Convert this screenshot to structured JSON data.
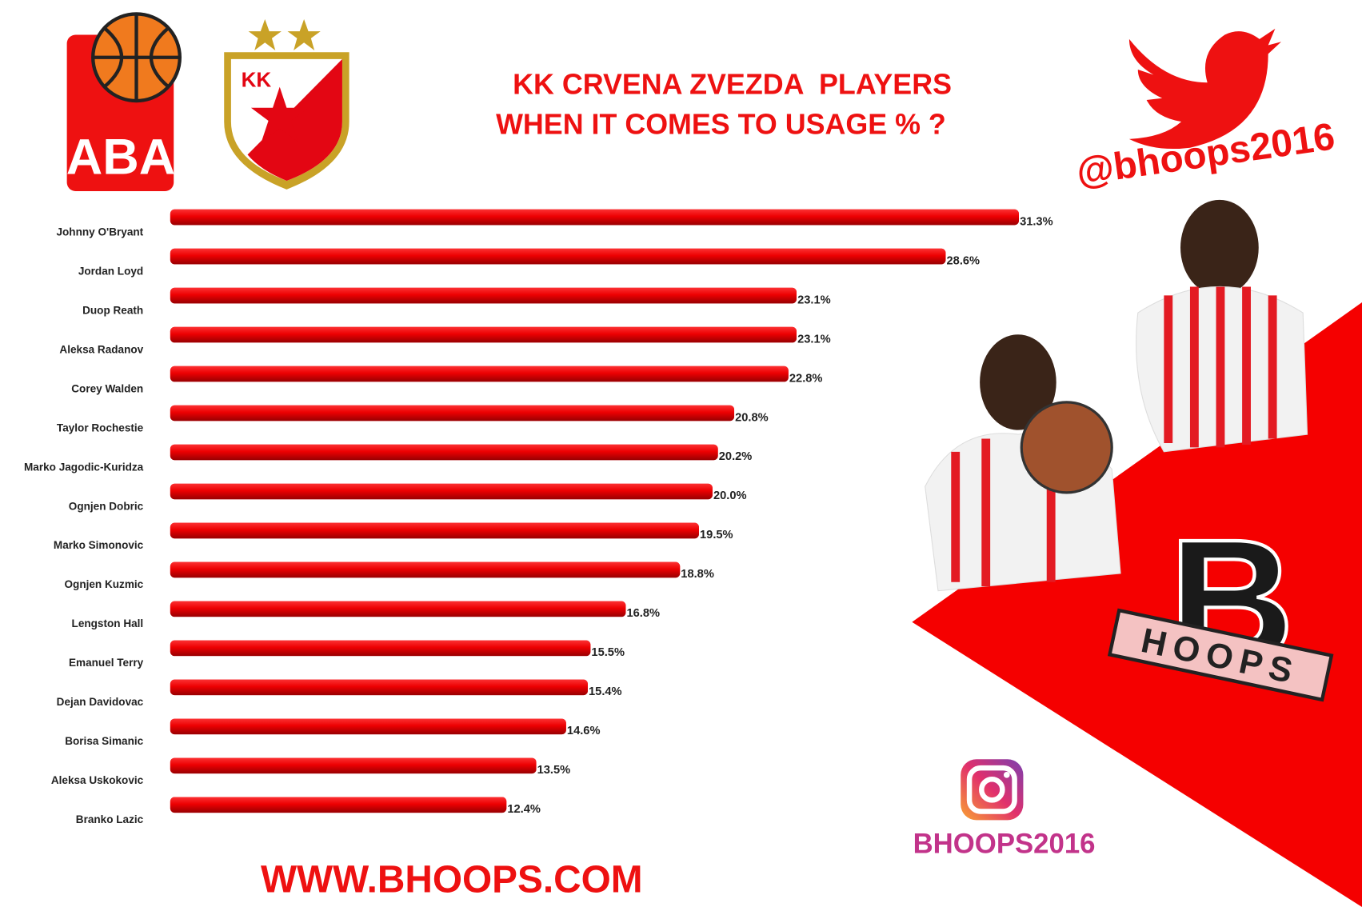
{
  "chart_data": {
    "type": "bar",
    "orientation": "horizontal",
    "title": "KK CRVENA ZVEZDA  PLAYERS",
    "subtitle": "WHEN IT COMES TO USAGE % ?",
    "color": "#e8000b",
    "categories": [
      "Johnny O'Bryant",
      "Jordan Loyd",
      "Duop Reath",
      "Aleksa Radanov",
      "Corey Walden",
      "Taylor Rochestie",
      "Marko Jagodic-Kuridza",
      "Ognjen Dobric",
      "Marko Simonovic",
      "Ognjen Kuzmic",
      "Lengston Hall",
      "Emanuel Terry",
      "Dejan Davidovac",
      "Borisa Simanic",
      "Aleksa Uskokovic",
      "Branko Lazic"
    ],
    "values": [
      31.3,
      28.6,
      23.1,
      23.1,
      22.8,
      20.8,
      20.2,
      20,
      19.5,
      18.8,
      16.8,
      15.5,
      15.4,
      14.6,
      13.5,
      12.4
    ],
    "value_labels": [
      "31.3%",
      "28.6%",
      "23.1%",
      "23.1%",
      "22.8%",
      "20.8%",
      "20.2%",
      "20.0%",
      "19.5%",
      "18.8%",
      "16.8%",
      "15.5%",
      "15.4%",
      "14.6%",
      "13.5%",
      "12.4%"
    ]
  },
  "branding": {
    "league": "ABA",
    "club": "KK",
    "twitter": "@bhoops2016",
    "instagram": "BHOOPS2016",
    "website": "WWW.BHOOPS.COM",
    "logo_letter": "B",
    "logo_text": "HOOPS"
  }
}
